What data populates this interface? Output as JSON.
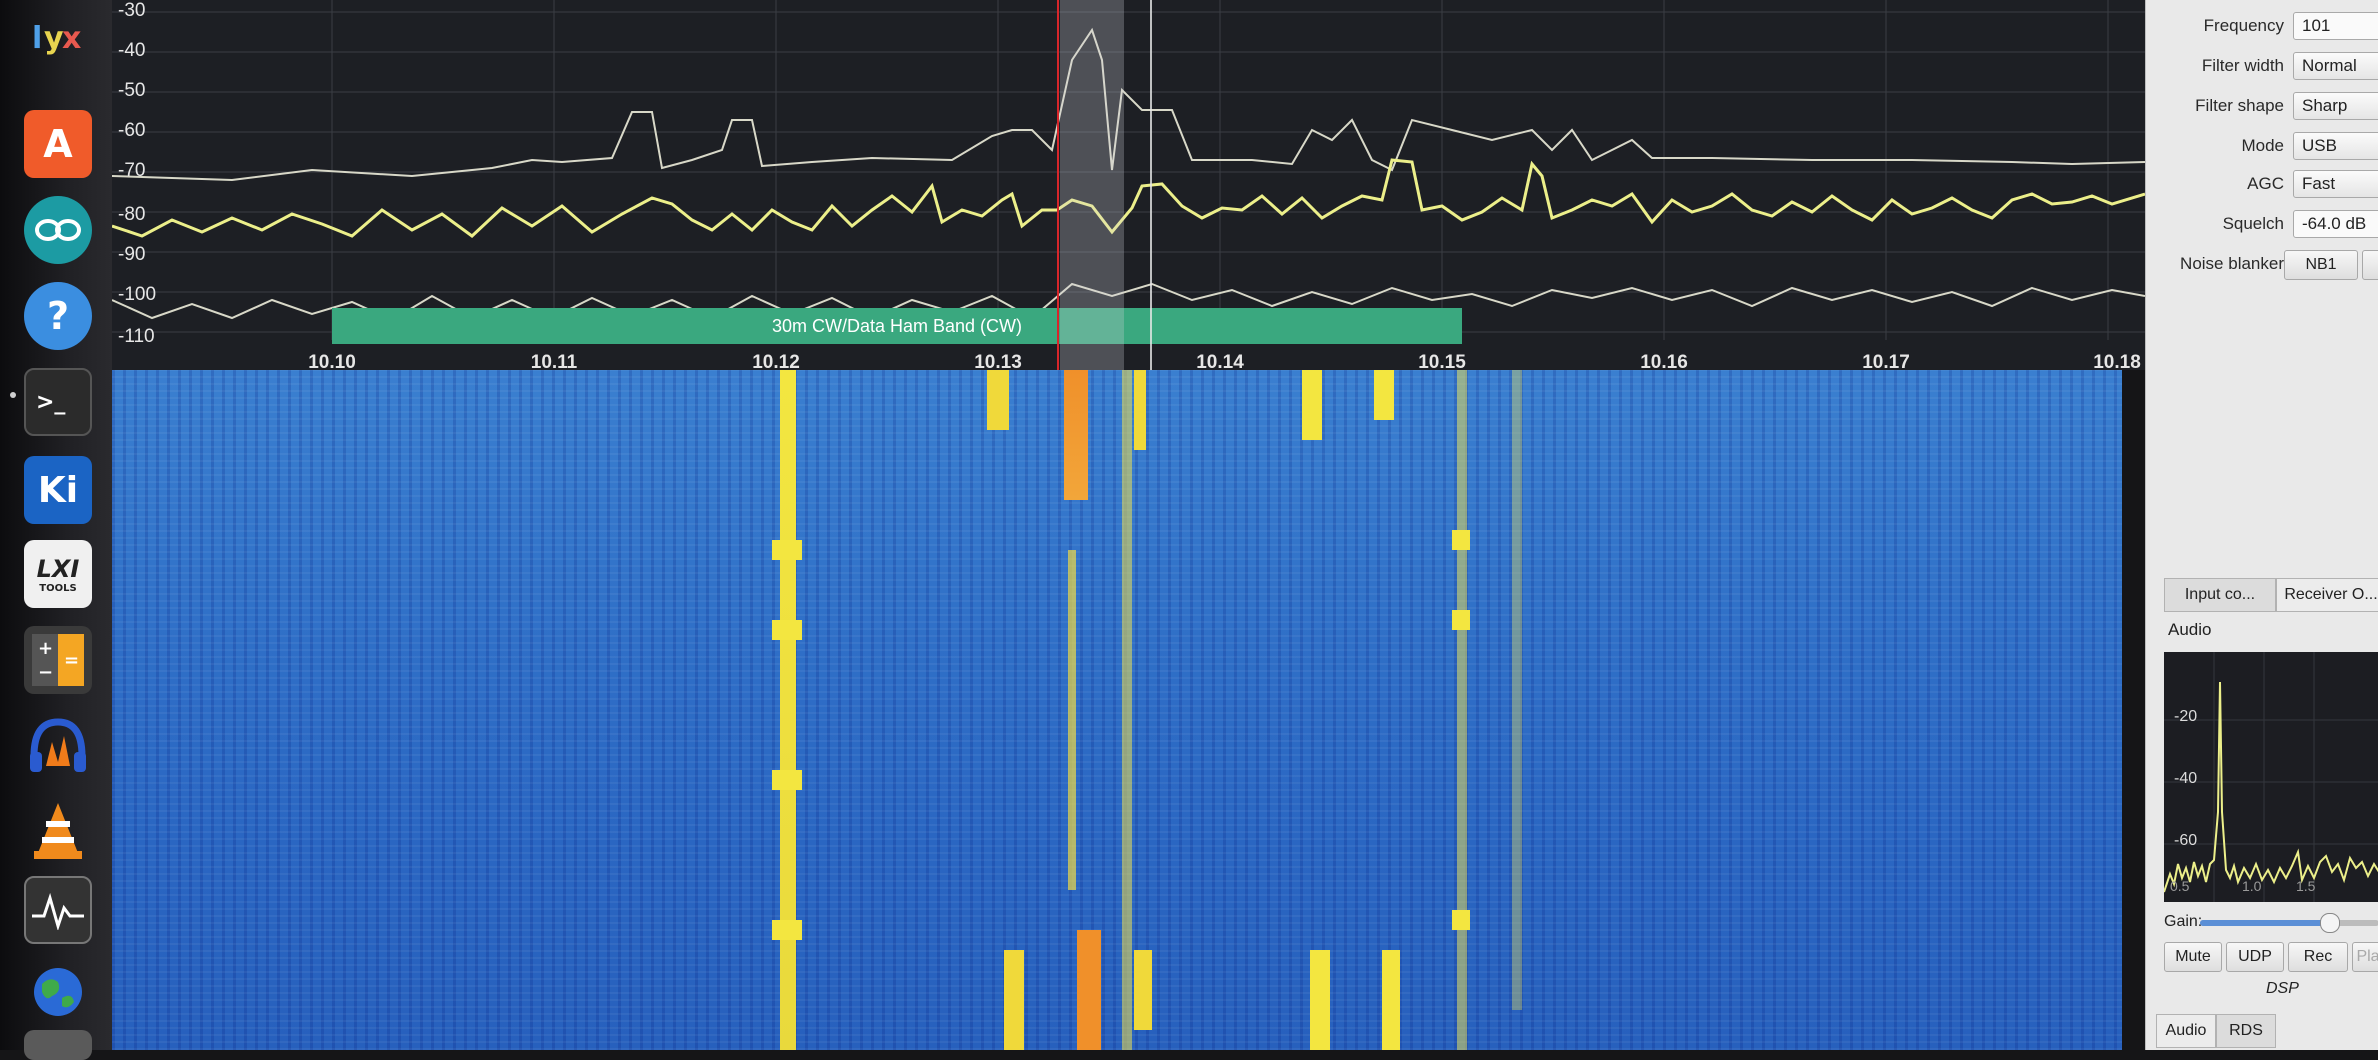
{
  "spectrum": {
    "db_ticks": [
      "-30",
      "-40",
      "-50",
      "-60",
      "-70",
      "-80",
      "-90",
      "-100",
      "-110"
    ],
    "freq_ticks": [
      "10.10",
      "10.11",
      "10.12",
      "10.13",
      "10.14",
      "10.15",
      "10.16",
      "10.17",
      "10.18"
    ],
    "band_label": "30m CW/Data Ham Band (CW)"
  },
  "receiver": {
    "frequency_label": "Frequency",
    "frequency_value": "101",
    "filter_width_label": "Filter width",
    "filter_width_value": "Normal",
    "filter_shape_label": "Filter shape",
    "filter_shape_value": "Sharp",
    "mode_label": "Mode",
    "mode_value": "USB",
    "agc_label": "AGC",
    "agc_value": "Fast",
    "squelch_label": "Squelch",
    "squelch_value": "-64.0 dB",
    "noise_blanker_label": "Noise blanker",
    "nb1_label": "NB1"
  },
  "panel_tabs": {
    "input_controls": "Input co...",
    "receiver_options": "Receiver O..."
  },
  "audio": {
    "section_title": "Audio",
    "fft_ticks": [
      "-20",
      "-40",
      "-60"
    ],
    "fft_x_ticks": [
      "0.5",
      "1.0",
      "1.5"
    ],
    "gain_label": "Gain:",
    "gain_level": 0.72,
    "buttons": [
      "Mute",
      "UDP",
      "Rec",
      "Play"
    ],
    "dsp_label": "DSP",
    "bottom_tabs": [
      "Audio",
      "RDS"
    ]
  },
  "colors": {
    "trace": "#ecef8a",
    "band": "#3aa87f",
    "waterfall_signal": "#f2e63a",
    "waterfall_strong": "#f0902a"
  },
  "launcher_icons": [
    "gqrx-logo-icon",
    "app-store-icon",
    "arduino-icon",
    "help-icon",
    "terminal-icon",
    "kicad-icon",
    "lxi-tools-icon",
    "calculator-icon",
    "audacity-icon",
    "vlc-icon",
    "system-monitor-icon",
    "globe-icon"
  ]
}
